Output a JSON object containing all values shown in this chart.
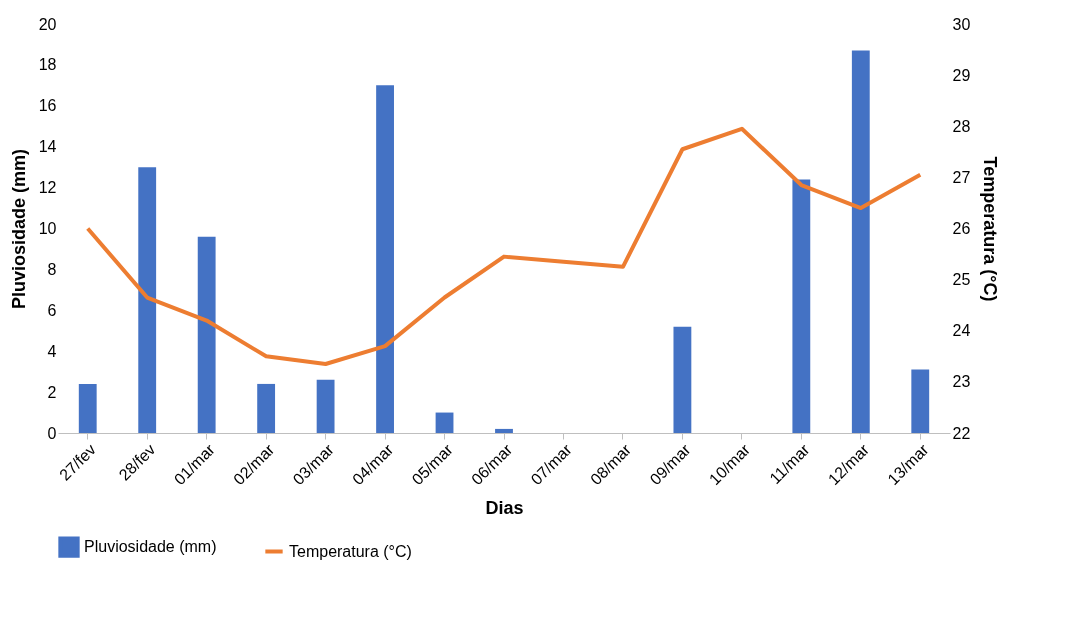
{
  "chart_data": {
    "type": "bar",
    "xlabel": "Dias",
    "ylabel": "Pluviosidade (mm)",
    "y2label": "Temperatura (°C)",
    "categories": [
      "27/fev",
      "28/fev",
      "01/mar",
      "02/mar",
      "03/mar",
      "04/mar",
      "05/mar",
      "06/mar",
      "07/mar",
      "08/mar",
      "09/mar",
      "10/mar",
      "11/mar",
      "12/mar",
      "13/mar"
    ],
    "series": [
      {
        "name": "Pluviosidade (mm)",
        "color": "#4472c4",
        "values": [
          2.4,
          13.0,
          9.6,
          2.4,
          2.6,
          17.0,
          1.0,
          0.2,
          0,
          0,
          5.2,
          0,
          12.4,
          18.7,
          3.1
        ]
      },
      {
        "name": "Temperatura (°C)",
        "type": "line",
        "axis": "y2",
        "color": "#ed7d31",
        "values": [
          26.0,
          24.65,
          24.2,
          23.5,
          23.35,
          23.7,
          24.65,
          25.45,
          25.35,
          25.25,
          27.55,
          27.95,
          26.85,
          26.4,
          27.05
        ]
      }
    ],
    "ylim": [
      0,
      20
    ],
    "yticks": [
      0,
      2,
      4,
      6,
      8,
      10,
      12,
      14,
      16,
      18,
      20
    ],
    "y2lim": [
      22,
      30
    ],
    "y2ticks": [
      22,
      23,
      24,
      25,
      26,
      27,
      28,
      29,
      30
    ],
    "grid": false,
    "legend": "bottom"
  }
}
